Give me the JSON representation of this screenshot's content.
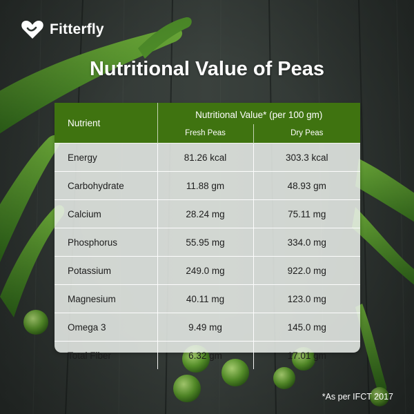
{
  "brand": {
    "name": "Fitterfly",
    "logo_icon": "heart-icon",
    "accent": "#3f7310"
  },
  "title": "Nutritional Value of Peas",
  "table": {
    "nutrient_header": "Nutrient",
    "value_header": "Nutritional Value* (per 100 gm)",
    "columns": [
      "Fresh Peas",
      "Dry Peas"
    ],
    "rows": [
      {
        "nutrient": "Energy",
        "fresh": "81.26 kcal",
        "dry": "303.3 kcal"
      },
      {
        "nutrient": "Carbohydrate",
        "fresh": "11.88 gm",
        "dry": "48.93 gm"
      },
      {
        "nutrient": "Calcium",
        "fresh": "28.24 mg",
        "dry": "75.11 mg"
      },
      {
        "nutrient": "Phosphorus",
        "fresh": "55.95 mg",
        "dry": "334.0 mg"
      },
      {
        "nutrient": "Potassium",
        "fresh": "249.0 mg",
        "dry": "922.0 mg"
      },
      {
        "nutrient": "Magnesium",
        "fresh": "40.11 mg",
        "dry": "123.0 mg"
      },
      {
        "nutrient": "Omega 3",
        "fresh": "9.49 mg",
        "dry": "145.0 mg"
      },
      {
        "nutrient": "Total Fiber",
        "fresh": "6.32 gm",
        "dry": "17.01 gm"
      }
    ]
  },
  "footnote": "*As per IFCT 2017"
}
